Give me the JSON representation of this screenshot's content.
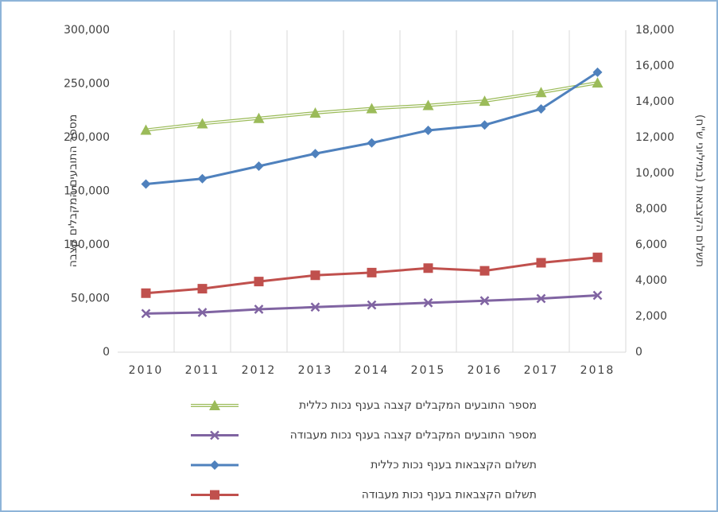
{
  "chart_data": {
    "type": "line",
    "categories": [
      "2010",
      "2011",
      "2012",
      "2013",
      "2014",
      "2015",
      "2016",
      "2017",
      "2018"
    ],
    "ylabel": "מספר התובעים המקבלים קצבה",
    "y2label": "תשלום הקצבאות (במיליוני ש\"ח)",
    "ylim": [
      0,
      300000
    ],
    "yticks": [
      0,
      {
        "value": 50000,
        "label": "50,000"
      },
      {
        "value": 100000,
        "label": "100,000"
      },
      {
        "value": 150000,
        "label": "150,000"
      },
      {
        "value": 200000,
        "label": "200,000"
      },
      {
        "value": 250000,
        "label": "250,000"
      },
      {
        "value": 300000,
        "label": "300,000"
      }
    ],
    "y2lim": [
      0,
      18000
    ],
    "y2ticks": [
      0,
      {
        "value": 2000,
        "label": "2,000"
      },
      {
        "value": 4000,
        "label": "4,000"
      },
      {
        "value": 6000,
        "label": "6,000"
      },
      {
        "value": 8000,
        "label": "8,000"
      },
      {
        "value": 10000,
        "label": "10,000"
      },
      {
        "value": 12000,
        "label": "12,000"
      },
      {
        "value": 14000,
        "label": "14,000"
      },
      {
        "value": 16000,
        "label": "16,000"
      },
      {
        "value": 18000,
        "label": "18,000"
      }
    ],
    "series": [
      {
        "name": "מספר התובעים המקבלים קצבה בענף נכות כללית",
        "color": "#9bbb59",
        "marker": "triangle",
        "values": [
          207000,
          213000,
          218000,
          223000,
          227000,
          230000,
          234000,
          242000,
          251000
        ]
      },
      {
        "name": "מספר התובעים המקבלים קצבה בענף נכות מעבודה",
        "color": "#8064a2",
        "marker": "x",
        "values": [
          36000,
          37000,
          40000,
          42000,
          44000,
          46000,
          48000,
          50000,
          53000
        ]
      },
      {
        "name": "תשלום הקצבאות בענף נכות כללית",
        "color": "#4f81bd",
        "marker": "diamond",
        "axis": "y2",
        "values": [
          9400,
          9700,
          10400,
          11100,
          11700,
          12400,
          12700,
          13600,
          15650
        ]
      },
      {
        "name": "תשלום הקצבאות בענף נכות מעבודה",
        "color": "#c0504d",
        "marker": "square",
        "axis": "y2",
        "values": [
          3300,
          3550,
          3950,
          4300,
          4450,
          4700,
          4550,
          5000,
          5300
        ]
      }
    ]
  }
}
